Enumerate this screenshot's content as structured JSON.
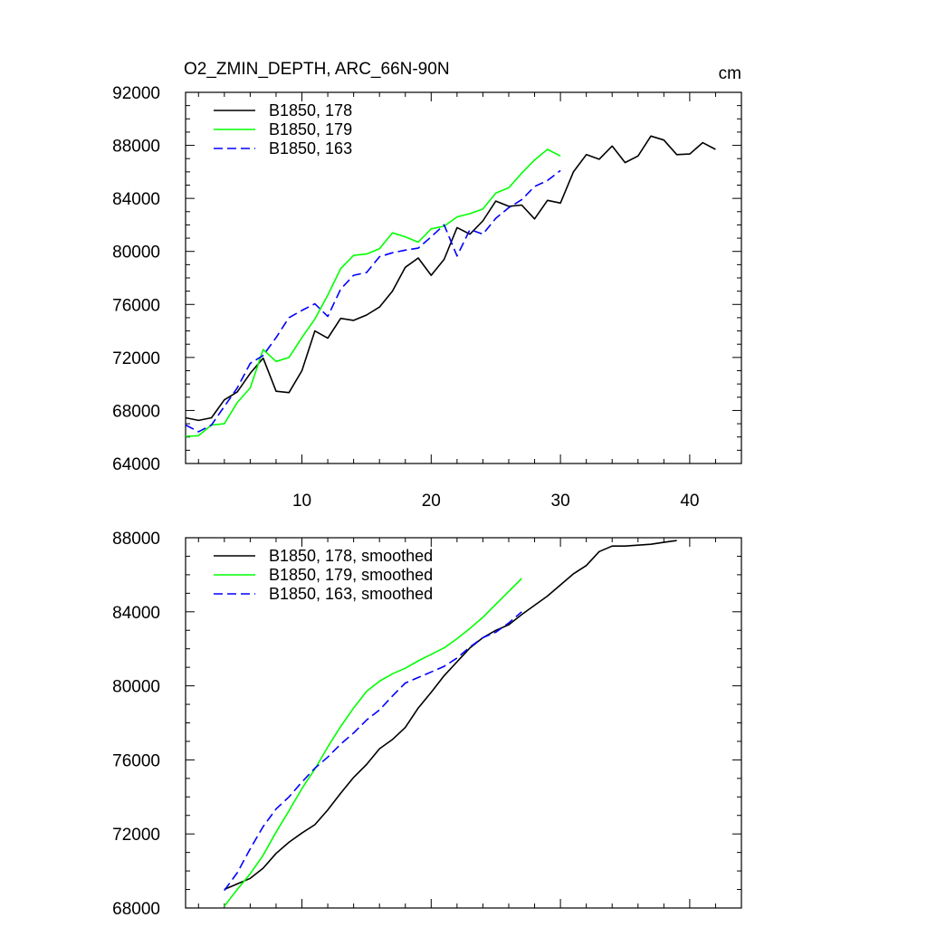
{
  "colors": {
    "s178": "#000000",
    "s179": "#00ff00",
    "s163": "#0000ff",
    "axis": "#000000",
    "background": "#ffffff"
  },
  "chart_data": [
    {
      "type": "line",
      "title": "O2_ZMIN_DEPTH, ARC_66N-90N",
      "units": "cm",
      "xlim": [
        1,
        44
      ],
      "ylim": [
        64000,
        92000
      ],
      "xticks": [
        10,
        20,
        30,
        40
      ],
      "xtick_labels": [
        "10",
        "20",
        "30",
        "40"
      ],
      "yticks": [
        64000,
        68000,
        72000,
        76000,
        80000,
        84000,
        88000,
        92000
      ],
      "ytick_labels": [
        "64000",
        "68000",
        "72000",
        "76000",
        "80000",
        "84000",
        "88000",
        "92000"
      ],
      "legend": [
        "B1850, 178",
        "B1850, 179",
        "B1850, 163"
      ],
      "legend_position": "top-left",
      "series": [
        {
          "name": "B1850, 178",
          "color": "#000000",
          "dash": false,
          "x": [
            1,
            2,
            3,
            4,
            5,
            6,
            7,
            8,
            9,
            10,
            11,
            12,
            13,
            14,
            15,
            16,
            17,
            18,
            19,
            20,
            21,
            22,
            23,
            24,
            25,
            26,
            27,
            28,
            29,
            30,
            31,
            32,
            33,
            34,
            35,
            36,
            37,
            38,
            39,
            40,
            41,
            42
          ],
          "y": [
            67450,
            67250,
            67450,
            68800,
            69400,
            70800,
            71950,
            69450,
            69350,
            71000,
            74000,
            73450,
            74950,
            74800,
            75200,
            75800,
            77000,
            78800,
            79500,
            78200,
            79400,
            81800,
            81300,
            82300,
            83800,
            83400,
            83500,
            82450,
            83850,
            83650,
            86000,
            87300,
            86950,
            87950,
            86700,
            87200,
            88700,
            88400,
            87300,
            87350,
            88200,
            87700
          ]
        },
        {
          "name": "B1850, 179",
          "color": "#00ff00",
          "dash": false,
          "x": [
            1,
            2,
            3,
            4,
            5,
            6,
            7,
            8,
            9,
            10,
            11,
            12,
            13,
            14,
            15,
            16,
            17,
            18,
            19,
            20,
            21,
            22,
            23,
            24,
            25,
            26,
            27,
            28,
            29,
            30
          ],
          "y": [
            66050,
            66100,
            66900,
            67000,
            68600,
            69700,
            72600,
            71700,
            72000,
            73500,
            74900,
            76700,
            78700,
            79700,
            79800,
            80200,
            81400,
            81100,
            80700,
            81700,
            81900,
            82600,
            82850,
            83200,
            84400,
            84800,
            85900,
            86900,
            87700,
            87200
          ]
        },
        {
          "name": "B1850, 163",
          "color": "#0000ff",
          "dash": true,
          "x": [
            1,
            2,
            3,
            4,
            5,
            6,
            7,
            8,
            9,
            10,
            11,
            12,
            13,
            14,
            15,
            16,
            17,
            18,
            19,
            20,
            21,
            22,
            23,
            24,
            25,
            26,
            27,
            28,
            29,
            30
          ],
          "y": [
            66900,
            66400,
            66900,
            68300,
            69700,
            71550,
            72150,
            73500,
            75000,
            75550,
            76050,
            75100,
            77150,
            78200,
            78400,
            79600,
            79900,
            80100,
            80250,
            81100,
            82000,
            79650,
            81650,
            81300,
            82500,
            83300,
            83900,
            84900,
            85350,
            86100
          ]
        }
      ]
    },
    {
      "type": "line",
      "title": "",
      "xlim": [
        1,
        44
      ],
      "ylim": [
        68000,
        88000
      ],
      "xticks": [
        10,
        20,
        30,
        40
      ],
      "xtick_labels": [],
      "yticks": [
        68000,
        72000,
        76000,
        80000,
        84000,
        88000
      ],
      "ytick_labels": [
        "68000",
        "72000",
        "76000",
        "80000",
        "84000",
        "88000"
      ],
      "legend": [
        "B1850, 178, smoothed",
        "B1850, 179, smoothed",
        "B1850, 163, smoothed"
      ],
      "legend_position": "top-left",
      "series": [
        {
          "name": "B1850, 178, smoothed",
          "color": "#000000",
          "dash": false,
          "x": [
            4,
            5,
            6,
            7,
            8,
            9,
            10,
            11,
            12,
            13,
            14,
            15,
            16,
            17,
            18,
            19,
            20,
            21,
            22,
            23,
            24,
            25,
            26,
            27,
            28,
            29,
            30,
            31,
            32,
            33,
            34,
            35,
            36,
            37,
            38,
            39
          ],
          "y": [
            69000,
            69300,
            69600,
            70150,
            70950,
            71550,
            72050,
            72500,
            73300,
            74200,
            75050,
            75750,
            76600,
            77100,
            77750,
            78800,
            79650,
            80550,
            81300,
            82050,
            82600,
            83000,
            83300,
            83850,
            84350,
            84850,
            85450,
            86050,
            86500,
            87250,
            87550,
            87550,
            87600,
            87650,
            87750,
            87850
          ]
        },
        {
          "name": "B1850, 179, smoothed",
          "color": "#00ff00",
          "dash": false,
          "x": [
            4,
            5,
            6,
            7,
            8,
            9,
            10,
            11,
            12,
            13,
            14,
            15,
            16,
            17,
            18,
            19,
            20,
            21,
            22,
            23,
            24,
            25,
            26,
            27
          ],
          "y": [
            68100,
            69000,
            69850,
            70850,
            72100,
            73250,
            74450,
            75500,
            76700,
            77800,
            78800,
            79700,
            80250,
            80650,
            80950,
            81350,
            81700,
            82050,
            82550,
            83100,
            83700,
            84400,
            85100,
            85800
          ]
        },
        {
          "name": "B1850, 163, smoothed",
          "color": "#0000ff",
          "dash": true,
          "x": [
            4,
            5,
            6,
            7,
            8,
            9,
            10,
            11,
            12,
            13,
            14,
            15,
            16,
            17,
            18,
            19,
            20,
            21,
            22,
            23,
            24,
            25,
            26,
            27
          ],
          "y": [
            68950,
            69900,
            71200,
            72400,
            73350,
            74000,
            74800,
            75550,
            76150,
            76850,
            77450,
            78150,
            78700,
            79450,
            80150,
            80450,
            80750,
            81050,
            81500,
            82100,
            82600,
            82900,
            83400,
            84000
          ]
        }
      ]
    }
  ]
}
